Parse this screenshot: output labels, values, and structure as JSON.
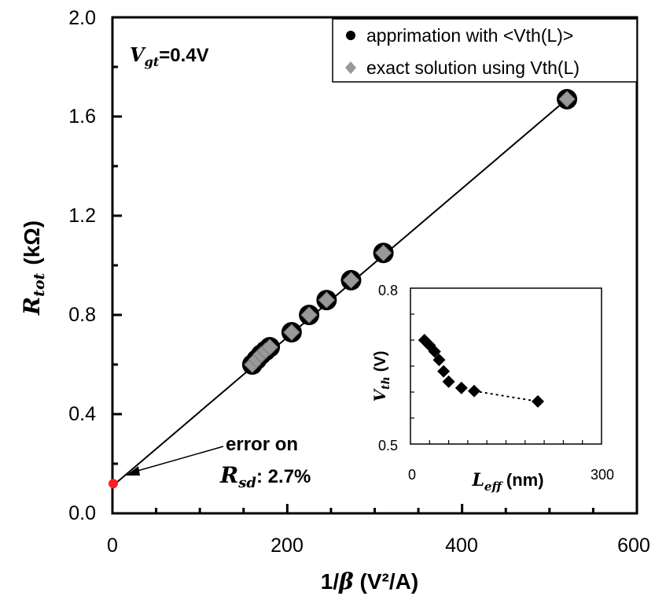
{
  "chart_data": [
    {
      "type": "scatter",
      "xlabel": "1/β (V²/A)",
      "xlabel_parts": {
        "main": "1/",
        "symbol": "β",
        "unit": "(V²/A)"
      },
      "ylabel_parts": {
        "symbol": "R",
        "sub": "tot",
        "unit": "(kΩ)"
      },
      "xlim": [
        0,
        600
      ],
      "ylim": [
        0,
        2.0
      ],
      "xticks": [
        0,
        200,
        400,
        600
      ],
      "yticks": [
        0.0,
        0.4,
        0.8,
        1.2,
        1.6,
        2.0
      ],
      "ytick_labels": [
        "0.0",
        "0.4",
        "0.8",
        "1.2",
        "1.6",
        "2.0"
      ],
      "grid": false,
      "legend_position": "top-right",
      "series": [
        {
          "name": "apprimation with <Vth(L)>",
          "marker": "circle",
          "color": "#000000",
          "x": [
            160,
            165,
            170,
            175,
            180,
            205,
            225,
            245,
            273,
            310,
            520
          ],
          "y": [
            0.6,
            0.62,
            0.64,
            0.655,
            0.67,
            0.73,
            0.8,
            0.86,
            0.94,
            1.05,
            1.67
          ]
        },
        {
          "name": "exact solution using Vth(L)",
          "marker": "diamond",
          "color": "#999999",
          "x": [
            160,
            165,
            170,
            175,
            180,
            205,
            225,
            245,
            273,
            310,
            520
          ],
          "y": [
            0.6,
            0.62,
            0.64,
            0.655,
            0.67,
            0.73,
            0.8,
            0.86,
            0.94,
            1.05,
            1.67
          ]
        }
      ],
      "fit_line": {
        "x": [
          0,
          520
        ],
        "y": [
          0.11,
          1.67
        ]
      },
      "intercept_point": {
        "x": 0,
        "y": 0.12,
        "color": "#ff2020"
      },
      "annotations": {
        "vgt": {
          "symbol": "V",
          "sub": "gt",
          "value": "=0.4V"
        },
        "error_line1": "error on",
        "error_symbol": "R",
        "error_sub": "sd",
        "error_value": ": 2.7%"
      }
    },
    {
      "type": "scatter",
      "xlabel_parts": {
        "symbol": "L",
        "sub": "eff",
        "unit": "(nm)"
      },
      "ylabel_parts": {
        "symbol": "V",
        "sub": "th",
        "unit": "(V)"
      },
      "xlim": [
        0,
        300
      ],
      "ylim": [
        0.5,
        0.8
      ],
      "xtick_labels": [
        "0",
        "300"
      ],
      "ytick_labels": [
        "0.5",
        "0.8"
      ],
      "series": [
        {
          "marker": "diamond",
          "color": "#000000",
          "x": [
            22,
            30,
            38,
            45,
            52,
            60,
            80,
            100,
            200
          ],
          "y": [
            0.7,
            0.69,
            0.678,
            0.662,
            0.64,
            0.62,
            0.608,
            0.602,
            0.582
          ]
        }
      ],
      "dotted_segment": {
        "x": [
          100,
          200
        ],
        "y": [
          0.602,
          0.582
        ]
      }
    }
  ]
}
